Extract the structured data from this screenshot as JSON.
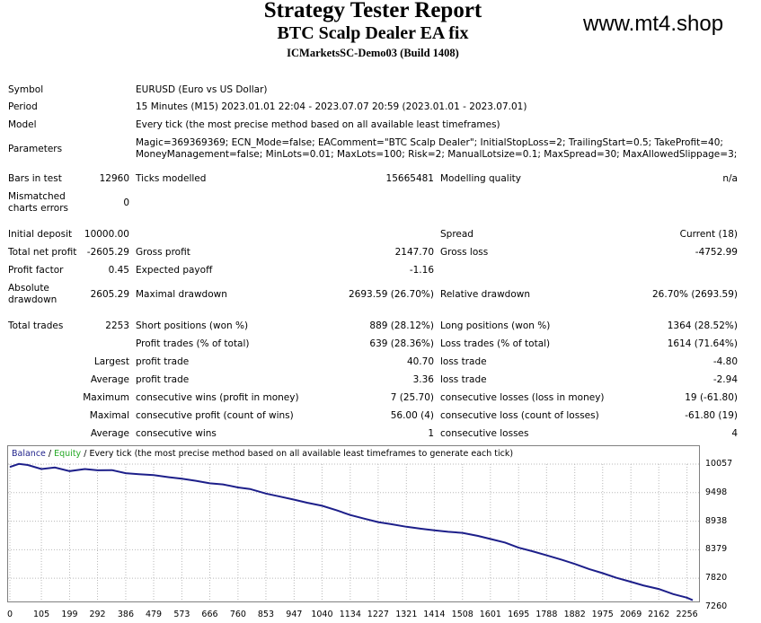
{
  "header": {
    "title": "Strategy Tester Report",
    "subtitle": "BTC Scalp Dealer EA fix",
    "account": "ICMarketsSC-Demo03 (Build 1408)",
    "watermark": "www.mt4.shop"
  },
  "info": {
    "symbol_label": "Symbol",
    "symbol_value": "EURUSD (Euro vs US Dollar)",
    "period_label": "Period",
    "period_value": "15 Minutes (M15) 2023.01.01 22:04 - 2023.07.07 20:59 (2023.01.01 - 2023.07.01)",
    "model_label": "Model",
    "model_value": "Every tick (the most precise method based on all available least timeframes)",
    "parameters_label": "Parameters",
    "parameters_line1": "Magic=369369369; ECN_Mode=false; EAComment=\"BTC Scalp Dealer\"; InitialStopLoss=2; TrailingStart=0.5; TakeProfit=40;",
    "parameters_line2": "MoneyManagement=false; MinLots=0.01; MaxLots=100; Risk=2; ManualLotsize=0.1; MaxSpread=30; MaxAllowedSlippage=3;"
  },
  "stats": {
    "bars_label": "Bars in test",
    "bars_value": "12960",
    "ticks_label": "Ticks modelled",
    "ticks_value": "15665481",
    "quality_label": "Modelling quality",
    "quality_value": "n/a",
    "mismatch_label_1": "Mismatched",
    "mismatch_label_2": "charts errors",
    "mismatch_value": "0",
    "deposit_label": "Initial deposit",
    "deposit_value": "10000.00",
    "spread_label": "Spread",
    "spread_value": "Current (18)",
    "net_label": "Total net profit",
    "net_value": "-2605.29",
    "gross_profit_label": "Gross profit",
    "gross_profit_value": "2147.70",
    "gross_loss_label": "Gross loss",
    "gross_loss_value": "-4752.99",
    "pf_label": "Profit factor",
    "pf_value": "0.45",
    "ep_label": "Expected payoff",
    "ep_value": "-1.16",
    "abs_dd_label_1": "Absolute",
    "abs_dd_label_2": "drawdown",
    "abs_dd_value": "2605.29",
    "max_dd_label": "Maximal drawdown",
    "max_dd_value": "2693.59 (26.70%)",
    "rel_dd_label": "Relative drawdown",
    "rel_dd_value": "26.70% (2693.59)",
    "trades_label": "Total trades",
    "trades_value": "2253",
    "short_label": "Short positions (won %)",
    "short_value": "889 (28.12%)",
    "long_label": "Long positions (won %)",
    "long_value": "1364 (28.52%)",
    "profit_trades_label": "Profit trades (% of total)",
    "profit_trades_value": "639 (28.36%)",
    "loss_trades_label": "Loss trades (% of total)",
    "loss_trades_value": "1614 (71.64%)",
    "largest_label": "Largest",
    "largest_profit_label": "profit trade",
    "largest_profit_value": "40.70",
    "largest_loss_label": "loss trade",
    "largest_loss_value": "-4.80",
    "average_label": "Average",
    "avg_profit_label": "profit trade",
    "avg_profit_value": "3.36",
    "avg_loss_label": "loss trade",
    "avg_loss_value": "-2.94",
    "maximum_label": "Maximum",
    "max_wins_label": "consecutive wins (profit in money)",
    "max_wins_value": "7 (25.70)",
    "max_losses_label": "consecutive losses (loss in money)",
    "max_losses_value": "19 (-61.80)",
    "maximal_label": "Maximal",
    "maximal_profit_label": "consecutive profit (count of wins)",
    "maximal_profit_value": "56.00 (4)",
    "maximal_loss_label": "consecutive loss (count of losses)",
    "maximal_loss_value": "-61.80 (19)",
    "average2_label": "Average",
    "avg_wins_label": "consecutive wins",
    "avg_wins_value": "1",
    "avg_losses_label": "consecutive losses",
    "avg_losses_value": "4"
  },
  "chart_legend": {
    "balance": "Balance",
    "sep1": " / ",
    "equity": "Equity",
    "sep2": " / ",
    "desc": "Every tick (the most precise method based on all available least timeframes to generate each tick)"
  },
  "colors": {
    "balance": "#1d1f8a",
    "equity": "#22a822",
    "grid": "#b8b8b8"
  },
  "chart_data": {
    "type": "line",
    "ylim": [
      7260,
      10200
    ],
    "xlim": [
      0,
      2290
    ],
    "y_ticks": [
      10057,
      9498,
      8938,
      8379,
      7820,
      7260
    ],
    "x_ticks": [
      0,
      105,
      199,
      292,
      386,
      479,
      573,
      666,
      760,
      853,
      947,
      1040,
      1134,
      1227,
      1321,
      1414,
      1508,
      1601,
      1695,
      1788,
      1882,
      1975,
      2069,
      2162,
      2256
    ],
    "series": [
      {
        "name": "Balance",
        "x": [
          0,
          30,
          60,
          105,
          150,
          199,
          250,
          292,
          340,
          386,
          430,
          479,
          530,
          573,
          620,
          666,
          710,
          760,
          800,
          853,
          900,
          947,
          990,
          1040,
          1090,
          1134,
          1180,
          1227,
          1270,
          1321,
          1370,
          1414,
          1460,
          1508,
          1560,
          1601,
          1650,
          1695,
          1740,
          1788,
          1840,
          1882,
          1930,
          1975,
          2020,
          2069,
          2110,
          2162,
          2210,
          2256,
          2275
        ],
        "y": [
          10000,
          10060,
          10040,
          9960,
          9990,
          9920,
          9960,
          9935,
          9940,
          9880,
          9860,
          9840,
          9800,
          9770,
          9730,
          9680,
          9660,
          9600,
          9570,
          9480,
          9420,
          9360,
          9300,
          9240,
          9150,
          9060,
          8990,
          8920,
          8880,
          8830,
          8790,
          8760,
          8730,
          8710,
          8650,
          8590,
          8520,
          8420,
          8350,
          8270,
          8180,
          8100,
          8000,
          7920,
          7830,
          7750,
          7680,
          7610,
          7510,
          7440,
          7390
        ]
      }
    ]
  }
}
